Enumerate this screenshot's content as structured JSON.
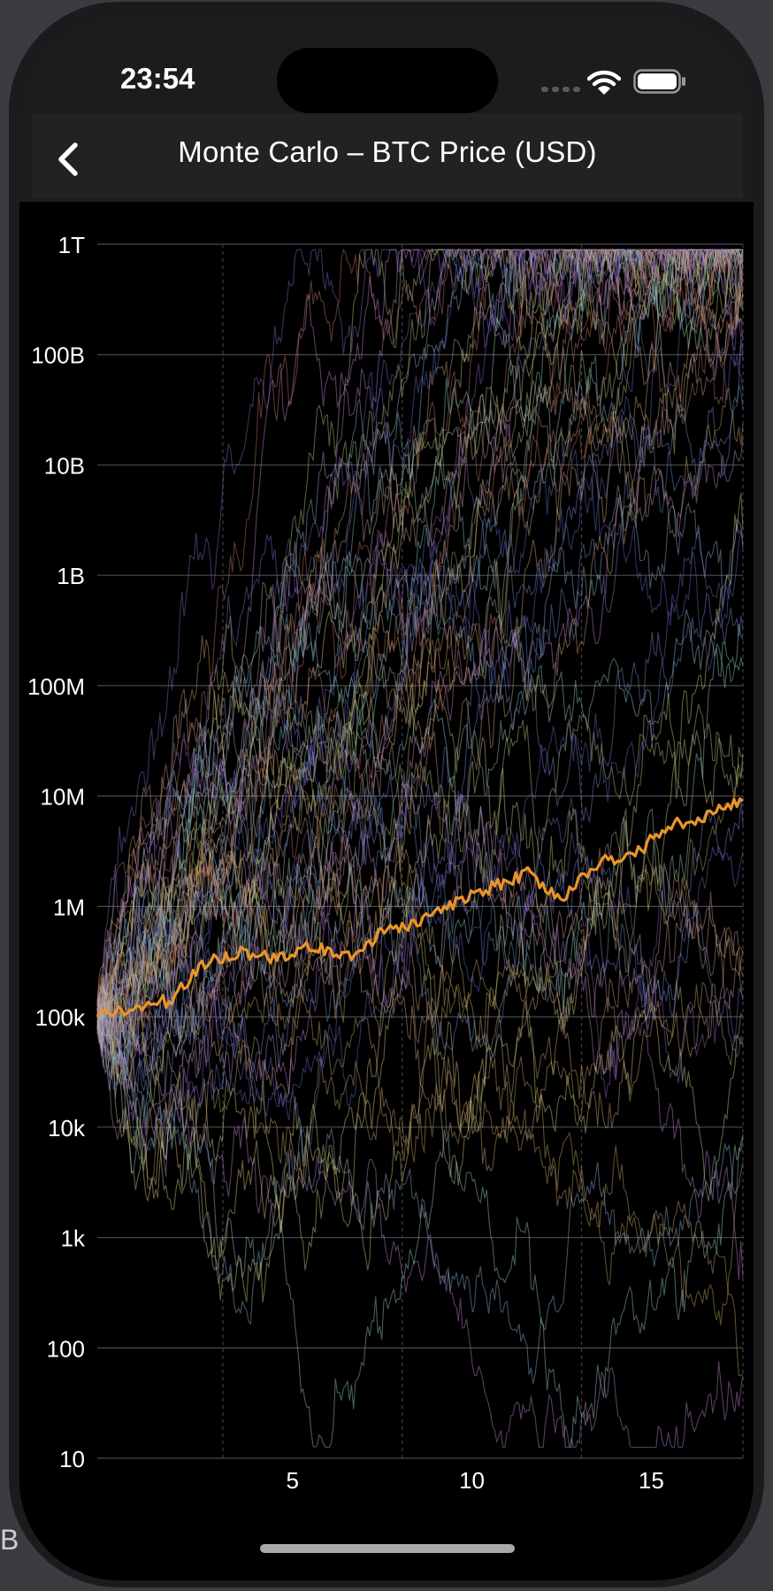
{
  "status_bar": {
    "time": "23:54",
    "icons": [
      "signal-dots-icon",
      "wifi-icon",
      "battery-icon"
    ]
  },
  "nav": {
    "title": "Monte Carlo – BTC Price (USD)",
    "back_icon": "chevron-left-icon"
  },
  "background_edge_text": "B",
  "colors": {
    "background": "#000000",
    "nav_background": "#222224",
    "median_line": "#e9952c",
    "grid": "#555555",
    "text": "#ffffff"
  },
  "chart_data": {
    "type": "line",
    "title": "Monte Carlo – BTC Price (USD)",
    "xlabel": "",
    "ylabel": "",
    "y_scale": "log",
    "ylim": [
      10,
      1000000000000
    ],
    "xlim": [
      0,
      18
    ],
    "x_ticks": [
      5,
      10,
      15
    ],
    "x_tick_labels": [
      "5",
      "10",
      "15"
    ],
    "y_ticks": [
      10,
      100,
      1000,
      10000,
      100000,
      1000000,
      10000000,
      100000000,
      1000000000,
      10000000000,
      100000000000,
      1000000000000
    ],
    "y_tick_labels": [
      "10",
      "100",
      "1k",
      "10k",
      "100k",
      "1M",
      "10M",
      "100M",
      "1B",
      "10B",
      "100B",
      "1T"
    ],
    "grid": {
      "horizontal": true,
      "vertical_dashed": true
    },
    "legend": "none",
    "simulated_paths": 60,
    "series": [
      {
        "role": "median",
        "color": "#e9952c",
        "x": [
          0,
          1,
          2,
          3,
          4,
          5,
          6,
          7,
          8,
          9,
          10,
          11,
          12,
          13,
          14,
          15,
          16,
          17,
          18
        ],
        "y": [
          100000,
          120000,
          140000,
          300000,
          400000,
          320000,
          450000,
          350000,
          600000,
          700000,
          1100000,
          1500000,
          2000000,
          1200000,
          2500000,
          3000000,
          5500000,
          6500000,
          9000000
        ]
      }
    ]
  }
}
